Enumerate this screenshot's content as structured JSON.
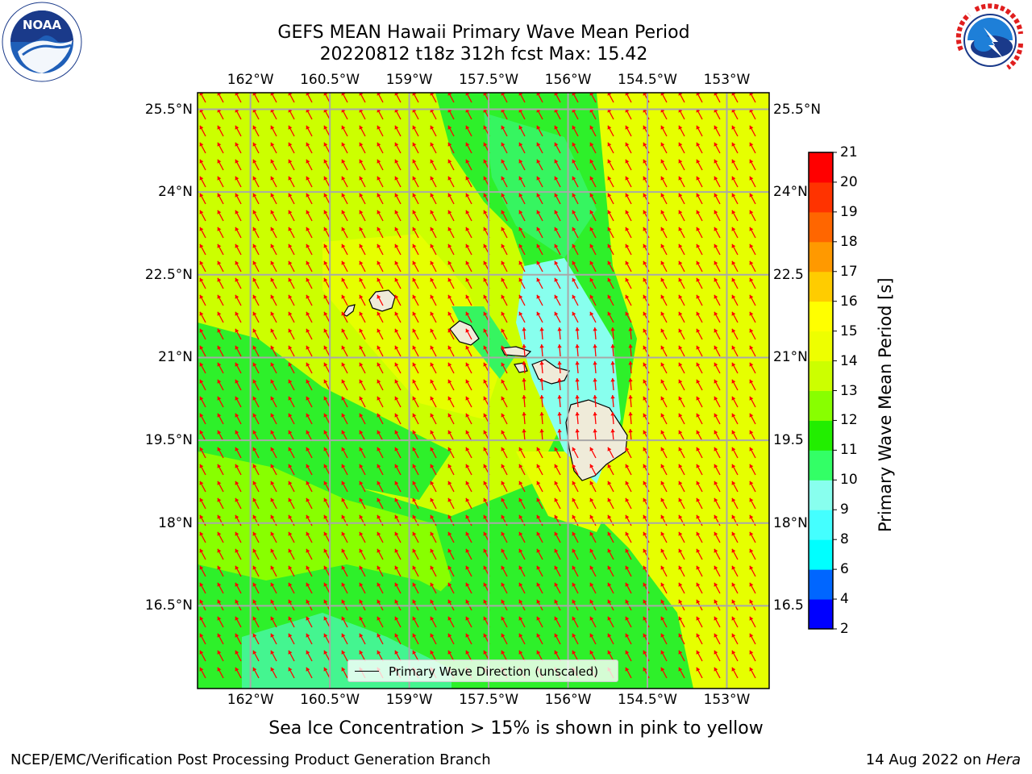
{
  "title": {
    "line1": "GEFS MEAN Hawaii Primary Wave Mean Period",
    "line2": "20220812 t18z 312h fcst   Max: 15.42"
  },
  "logos": {
    "left": {
      "name": "noaa-logo",
      "text": "NOAA",
      "ring_text": "NATIONAL OCEANIC AND ATMOSPHERIC ADMINISTRATION · U.S. DEPARTMENT OF COMMERCE"
    },
    "right": {
      "name": "nws-logo",
      "ring_text": "NATIONAL WEATHER SERVICE"
    }
  },
  "map": {
    "lon_ticks": [
      "162°W",
      "160.5°W",
      "159°W",
      "157.5°W",
      "156°W",
      "154.5°W",
      "153°W"
    ],
    "lat_ticks": [
      "25.5°N",
      "24°N",
      "22.5°N",
      "21°N",
      "19.5°N",
      "18°N",
      "16.5°N"
    ],
    "lat_ticks_right": [
      "25.5°N",
      "24°N",
      "22.5",
      "21°N",
      "19.5",
      "18°N",
      "16.5"
    ],
    "lon_range": [
      -163,
      -152.2
    ],
    "lat_range": [
      15,
      25.8
    ],
    "grid": true,
    "legend_label": "Primary Wave Direction (unscaled)",
    "arrow_color": "#ff0000",
    "land_color": "#efebd9"
  },
  "colorbar": {
    "title": "Primary Wave Mean Period [s]",
    "labels": [
      "2",
      "4",
      "6",
      "8",
      "9",
      "10",
      "11",
      "12",
      "13",
      "14",
      "15",
      "16",
      "17",
      "18",
      "19",
      "20",
      "21"
    ],
    "colors": [
      "#0000ff",
      "#0066ff",
      "#00ffff",
      "#44ffff",
      "#88ffee",
      "#33ff66",
      "#22ee00",
      "#88ff00",
      "#ccff00",
      "#eeff00",
      "#ffff00",
      "#ffcc00",
      "#ff9900",
      "#ff6600",
      "#ff3300",
      "#ff0000"
    ]
  },
  "footer": {
    "note": "Sea Ice Concentration > 15% is shown in pink to yellow",
    "left": "NCEP/EMC/Verification Post Processing Product Generation Branch",
    "date": "14 Aug 2022 on ",
    "machine": "Hera"
  }
}
